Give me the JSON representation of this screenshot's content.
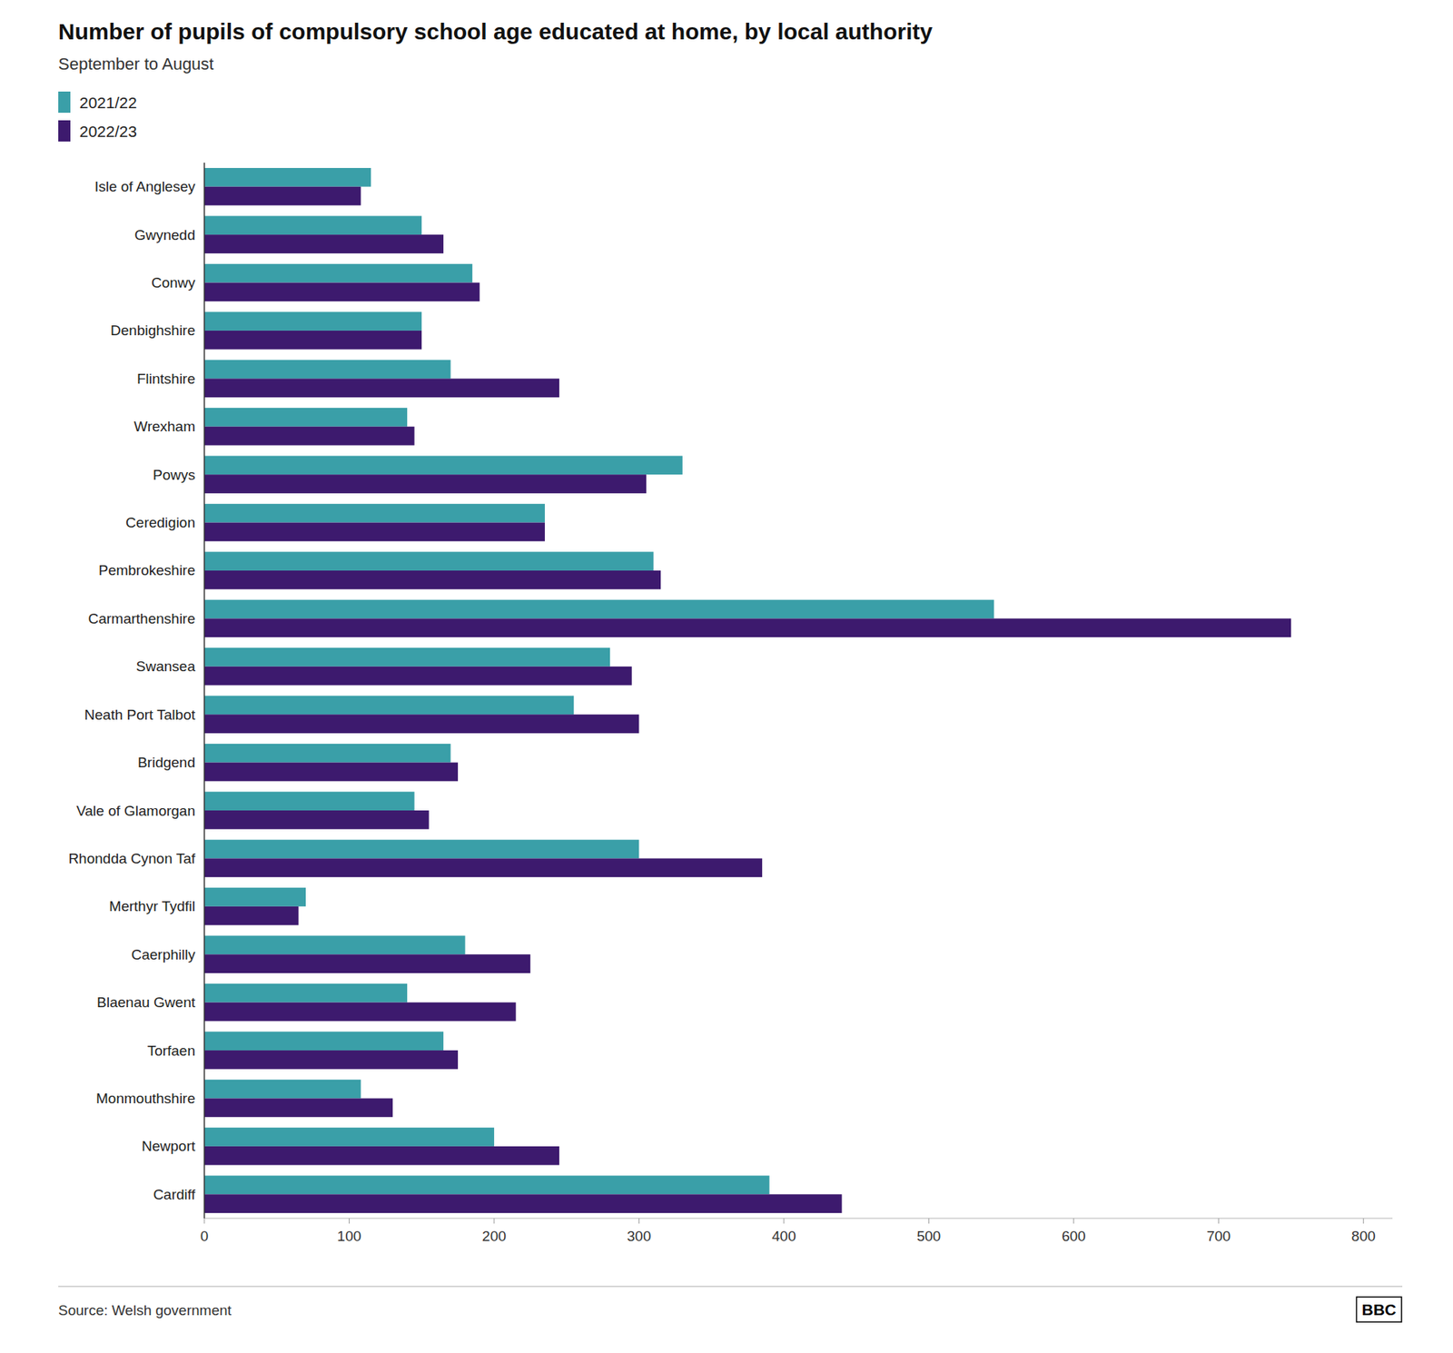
{
  "chart_data": {
    "type": "bar",
    "orientation": "horizontal",
    "title": "Number of pupils of compulsory school age educated at home, by local authority",
    "subtitle": "September to August",
    "source": "Source: Welsh government",
    "annotations": [
      "BBC"
    ],
    "categories": [
      "Isle of Anglesey",
      "Gwynedd",
      "Conwy",
      "Denbighshire",
      "Flintshire",
      "Wrexham",
      "Powys",
      "Ceredigion",
      "Pembrokeshire",
      "Carmarthenshire",
      "Swansea",
      "Neath Port Talbot",
      "Bridgend",
      "Vale of Glamorgan",
      "Rhondda Cynon Taf",
      "Merthyr Tydfil",
      "Caerphilly",
      "Blaenau Gwent",
      "Torfaen",
      "Monmouthshire",
      "Newport",
      "Cardiff"
    ],
    "series": [
      {
        "name": "2021/22",
        "color": "#3a9fa8",
        "values": [
          115,
          150,
          185,
          150,
          170,
          140,
          330,
          235,
          310,
          545,
          280,
          255,
          170,
          145,
          300,
          70,
          180,
          140,
          165,
          108,
          200,
          390
        ]
      },
      {
        "name": "2022/23",
        "color": "#3d1a6e",
        "values": [
          108,
          165,
          190,
          150,
          245,
          145,
          305,
          235,
          315,
          750,
          295,
          300,
          175,
          155,
          385,
          65,
          225,
          215,
          175,
          130,
          245,
          440
        ]
      }
    ],
    "xlim": [
      0,
      820
    ],
    "xticks": [
      0,
      100,
      200,
      300,
      400,
      500,
      600,
      700,
      800
    ],
    "grid": false,
    "legend": "top"
  }
}
